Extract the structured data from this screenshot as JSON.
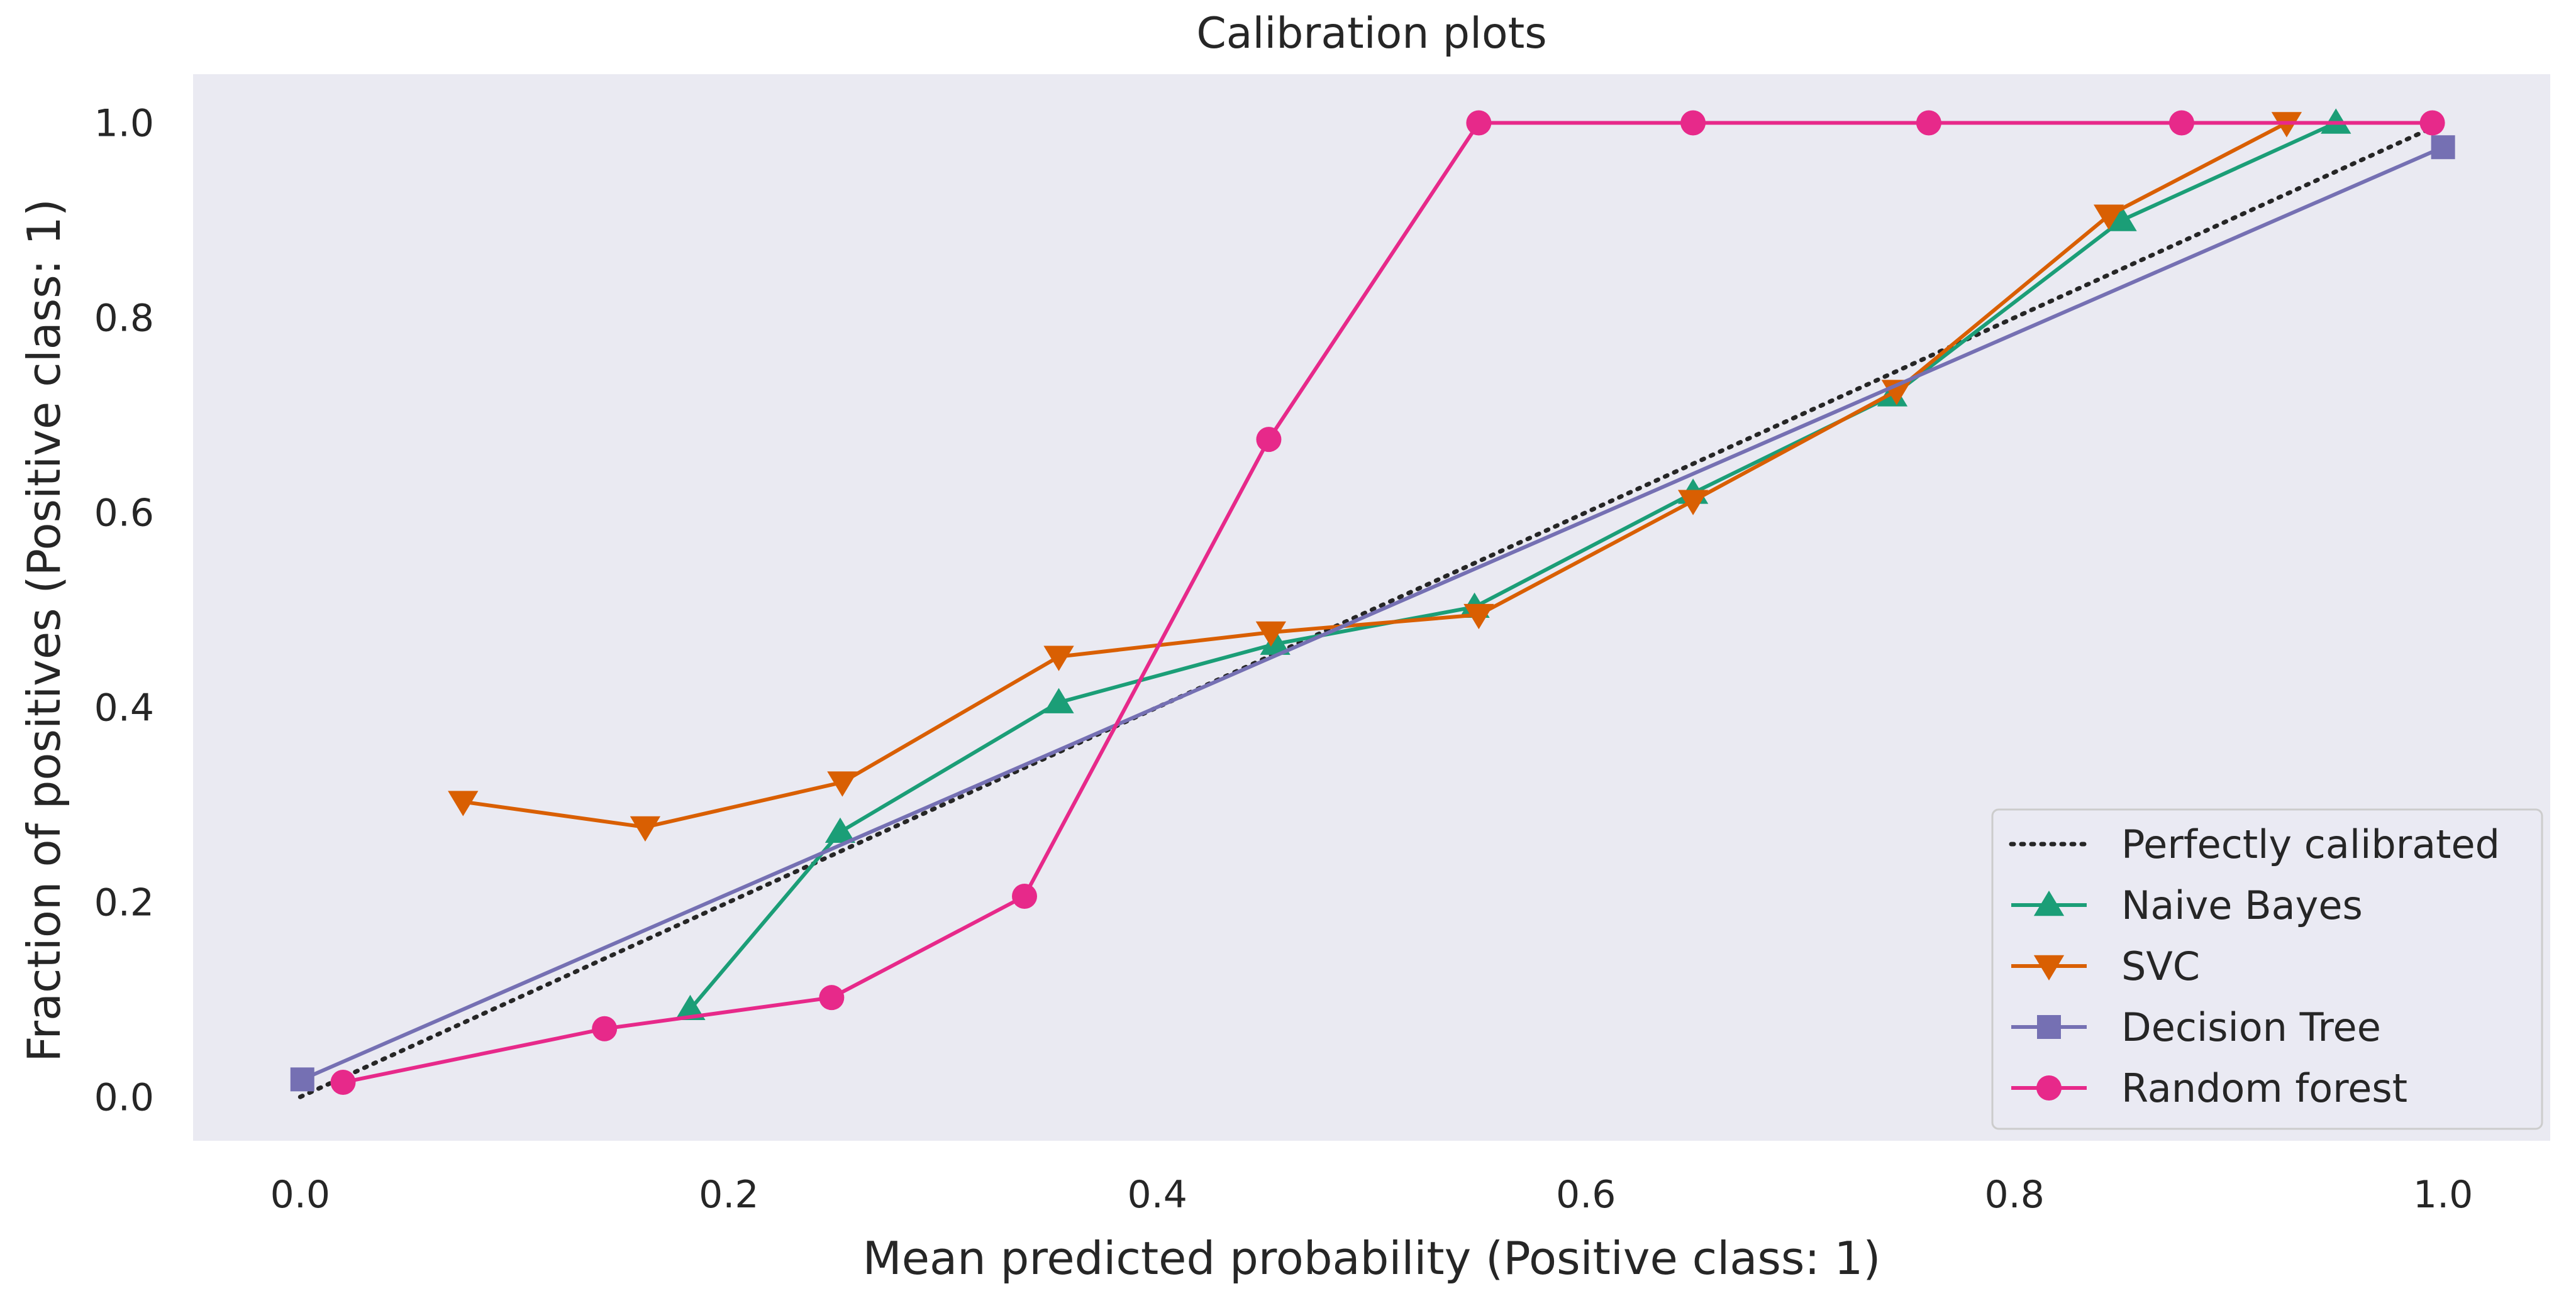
{
  "chart_data": {
    "type": "line",
    "title": "Calibration plots",
    "xlabel": "Mean predicted probability (Positive class: 1)",
    "ylabel": "Fraction of positives (Positive class: 1)",
    "xlim": [
      -0.05,
      1.05
    ],
    "ylim": [
      -0.045,
      1.05
    ],
    "x_ticks": [
      0.0,
      0.2,
      0.4,
      0.6,
      0.8,
      1.0
    ],
    "x_tick_labels": [
      "0.0",
      "0.2",
      "0.4",
      "0.6",
      "0.8",
      "1.0"
    ],
    "y_ticks": [
      0.0,
      0.2,
      0.4,
      0.6,
      0.8,
      1.0
    ],
    "y_tick_labels": [
      "0.0",
      "0.2",
      "0.4",
      "0.6",
      "0.8",
      "1.0"
    ],
    "grid": false,
    "legend_position": "lower right",
    "background_color": "#eaeaf2",
    "series": [
      {
        "name": "Perfectly calibrated",
        "color": "#262626",
        "linestyle": "dotted",
        "marker": "none",
        "x": [
          0.0,
          1.0
        ],
        "y": [
          0.0,
          1.0
        ]
      },
      {
        "name": "Naive Bayes",
        "color": "#1b9e77",
        "linestyle": "solid",
        "marker": "triangle-up",
        "x": [
          0.182,
          0.252,
          0.354,
          0.455,
          0.548,
          0.65,
          0.743,
          0.85,
          0.95
        ],
        "y": [
          0.09,
          0.272,
          0.405,
          0.465,
          0.503,
          0.62,
          0.72,
          0.9,
          1.0
        ]
      },
      {
        "name": "SVC",
        "color": "#d95f02",
        "linestyle": "solid",
        "marker": "triangle-down",
        "x": [
          0.076,
          0.161,
          0.253,
          0.354,
          0.453,
          0.55,
          0.65,
          0.745,
          0.844,
          0.927
        ],
        "y": [
          0.303,
          0.277,
          0.323,
          0.452,
          0.477,
          0.495,
          0.612,
          0.725,
          0.905,
          1.0
        ]
      },
      {
        "name": "Decision Tree",
        "color": "#7570b3",
        "linestyle": "solid",
        "marker": "square",
        "x": [
          0.001,
          1.0
        ],
        "y": [
          0.018,
          0.975
        ]
      },
      {
        "name": "Random forest",
        "color": "#e7298a",
        "linestyle": "solid",
        "marker": "circle",
        "x": [
          0.02,
          0.142,
          0.248,
          0.338,
          0.452,
          0.55,
          0.65,
          0.76,
          0.878,
          0.995
        ],
        "y": [
          0.015,
          0.07,
          0.102,
          0.206,
          0.675,
          1.0,
          1.0,
          1.0,
          1.0,
          1.0
        ]
      }
    ]
  }
}
